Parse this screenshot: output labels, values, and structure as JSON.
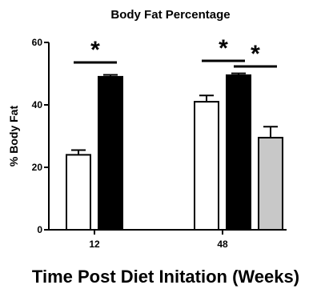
{
  "chart_data": {
    "type": "bar",
    "title": "Body Fat Percentage",
    "xlabel": "Time Post Diet Initation (Weeks)",
    "ylabel": "% Body Fat",
    "ylim": [
      0,
      60
    ],
    "yticks": [
      0,
      20,
      40,
      60
    ],
    "grid": false,
    "groups": [
      {
        "label": "12",
        "bars": [
          {
            "value": 24,
            "error": 1.5,
            "color": "#ffffff"
          },
          {
            "value": 49,
            "error": 0.6,
            "color": "#000000"
          }
        ]
      },
      {
        "label": "48",
        "bars": [
          {
            "value": 41,
            "error": 2.0,
            "color": "#ffffff"
          },
          {
            "value": 49.5,
            "error": 0.6,
            "color": "#000000"
          },
          {
            "value": 29.5,
            "error": 3.5,
            "color": "#c8c8c8"
          }
        ]
      }
    ],
    "significance": [
      {
        "group": 0,
        "from_bar": 0,
        "to_bar": 1,
        "label": "*"
      },
      {
        "group": 1,
        "from_bar": 0,
        "to_bar": 1,
        "label": "*"
      },
      {
        "group": 1,
        "from_bar": 1,
        "to_bar": 2,
        "label": "*"
      }
    ]
  }
}
